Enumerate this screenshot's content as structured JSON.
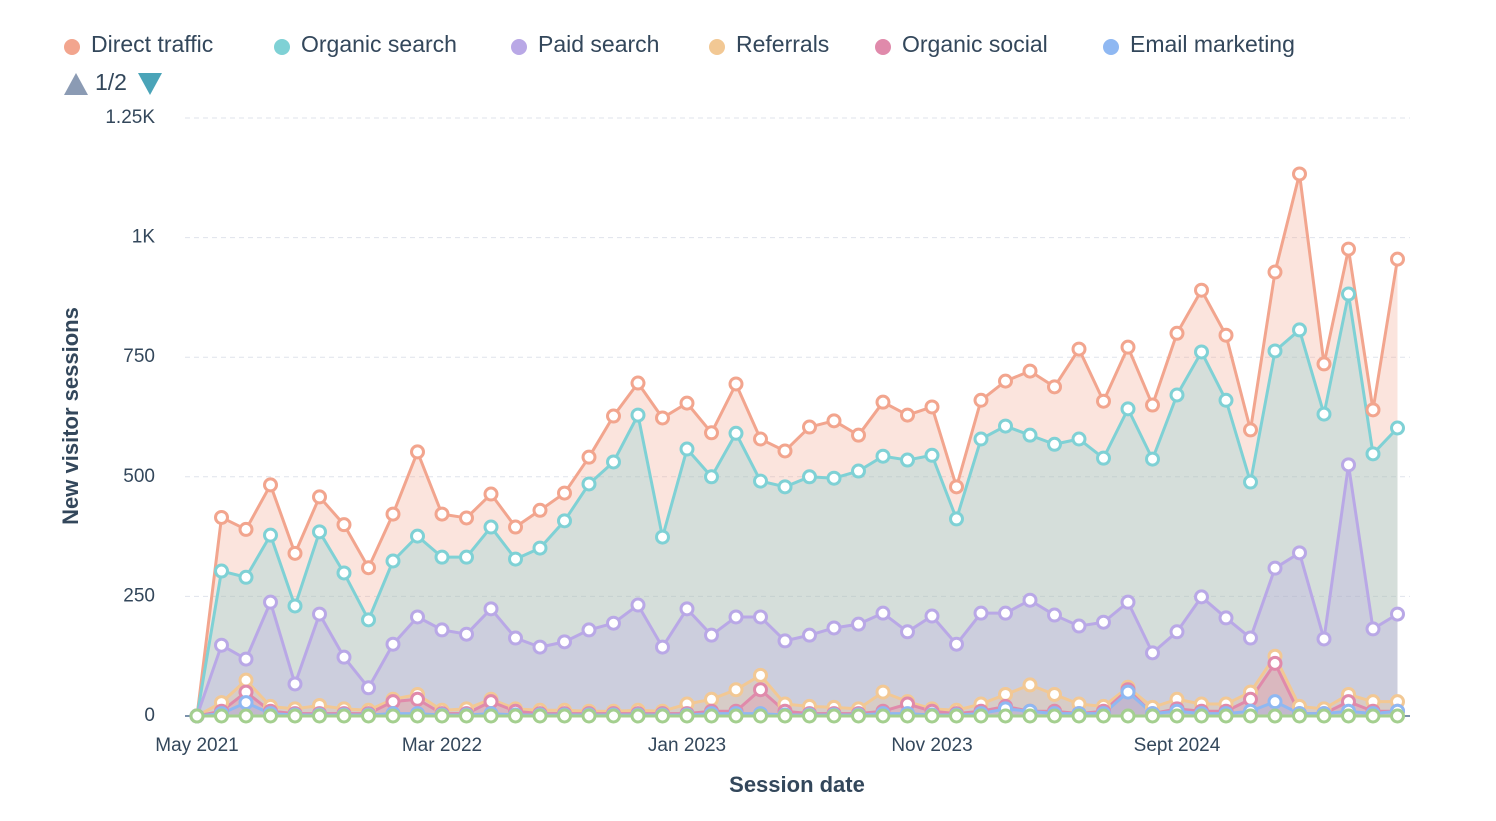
{
  "chart_data": {
    "type": "area",
    "y_label": "New visitor sessions",
    "x_label": "Session date",
    "legend_page": "1/2",
    "categories": [
      "May 2021",
      null,
      null,
      null,
      null,
      null,
      null,
      null,
      null,
      null,
      "Mar 2022",
      null,
      null,
      null,
      null,
      null,
      null,
      null,
      null,
      null,
      "Jan 2023",
      null,
      null,
      null,
      null,
      null,
      null,
      null,
      null,
      null,
      "Nov 2023",
      null,
      null,
      null,
      null,
      null,
      null,
      null,
      null,
      null,
      "Sept 2024",
      null,
      null,
      null,
      null,
      null,
      null,
      null,
      null,
      null
    ],
    "ylim": [
      0,
      1250
    ],
    "yticks": [
      0,
      250,
      500,
      750,
      {
        "value": 1000,
        "label": "1K"
      },
      {
        "value": 1250,
        "label": "1.25K"
      }
    ],
    "grid": true,
    "series": [
      {
        "name": "Direct traffic",
        "color": "#f2a58e",
        "values": [
          0,
          415,
          390,
          483,
          340,
          458,
          400,
          310,
          422,
          552,
          422,
          414,
          464,
          395,
          430,
          466,
          541,
          627,
          696,
          623,
          654,
          592,
          694,
          579,
          554,
          604,
          617,
          587,
          656,
          629,
          646,
          479,
          660,
          700,
          721,
          688,
          767,
          658,
          771,
          650,
          800,
          890,
          796,
          598,
          928,
          1133,
          736,
          976,
          640,
          955
        ]
      },
      {
        "name": "Organic search",
        "color": "#7fd1d5",
        "values": [
          0,
          303,
          290,
          378,
          230,
          385,
          299,
          201,
          324,
          376,
          332,
          332,
          395,
          328,
          351,
          408,
          485,
          531,
          629,
          374,
          558,
          500,
          591,
          491,
          479,
          500,
          497,
          512,
          543,
          535,
          545,
          412,
          579,
          606,
          587,
          568,
          579,
          539,
          642,
          537,
          671,
          761,
          660,
          489,
          763,
          807,
          631,
          882,
          548,
          602
        ]
      },
      {
        "name": "Paid search",
        "color": "#b9a8e6",
        "values": [
          0,
          148,
          119,
          238,
          67,
          213,
          123,
          59,
          150,
          207,
          180,
          171,
          224,
          163,
          144,
          155,
          180,
          194,
          232,
          144,
          224,
          169,
          207,
          207,
          157,
          169,
          184,
          192,
          215,
          176,
          209,
          150,
          215,
          215,
          242,
          211,
          188,
          196,
          238,
          132,
          176,
          249,
          205,
          163,
          309,
          341,
          161,
          525,
          182,
          213
        ]
      },
      {
        "name": "Referrals",
        "color": "#f2c894",
        "values": [
          0,
          28,
          75,
          20,
          15,
          22,
          15,
          12,
          35,
          45,
          12,
          15,
          35,
          15,
          12,
          12,
          10,
          10,
          12,
          10,
          25,
          35,
          55,
          85,
          25,
          20,
          18,
          15,
          50,
          30,
          15,
          12,
          25,
          45,
          65,
          45,
          25,
          20,
          60,
          18,
          35,
          25,
          25,
          50,
          125,
          20,
          15,
          45,
          30,
          30
        ]
      },
      {
        "name": "Organic social",
        "color": "#e08aab",
        "values": [
          0,
          10,
          50,
          10,
          5,
          5,
          5,
          5,
          30,
          35,
          5,
          5,
          30,
          10,
          5,
          5,
          5,
          5,
          5,
          5,
          5,
          10,
          10,
          55,
          10,
          5,
          5,
          5,
          10,
          25,
          10,
          5,
          10,
          20,
          10,
          10,
          5,
          10,
          55,
          5,
          15,
          10,
          10,
          35,
          110,
          5,
          5,
          30,
          10,
          10
        ]
      },
      {
        "name": "Email marketing",
        "color": "#8fb8f2",
        "values": [
          0,
          5,
          28,
          5,
          2,
          2,
          2,
          2,
          5,
          5,
          2,
          2,
          5,
          2,
          2,
          2,
          2,
          2,
          2,
          2,
          2,
          5,
          5,
          5,
          2,
          2,
          2,
          2,
          5,
          5,
          2,
          2,
          5,
          15,
          10,
          5,
          5,
          5,
          50,
          5,
          10,
          5,
          5,
          10,
          30,
          5,
          5,
          10,
          5,
          10
        ]
      },
      {
        "color": "#a4cf8f",
        "values": [
          0,
          0,
          0,
          0,
          0,
          0,
          0,
          0,
          0,
          0,
          0,
          0,
          0,
          0,
          0,
          0,
          0,
          0,
          0,
          0,
          0,
          0,
          0,
          0,
          0,
          0,
          0,
          0,
          0,
          0,
          0,
          0,
          0,
          0,
          0,
          0,
          0,
          0,
          0,
          0,
          0,
          0,
          0,
          0,
          0,
          0,
          0,
          0,
          0,
          0
        ]
      }
    ]
  }
}
